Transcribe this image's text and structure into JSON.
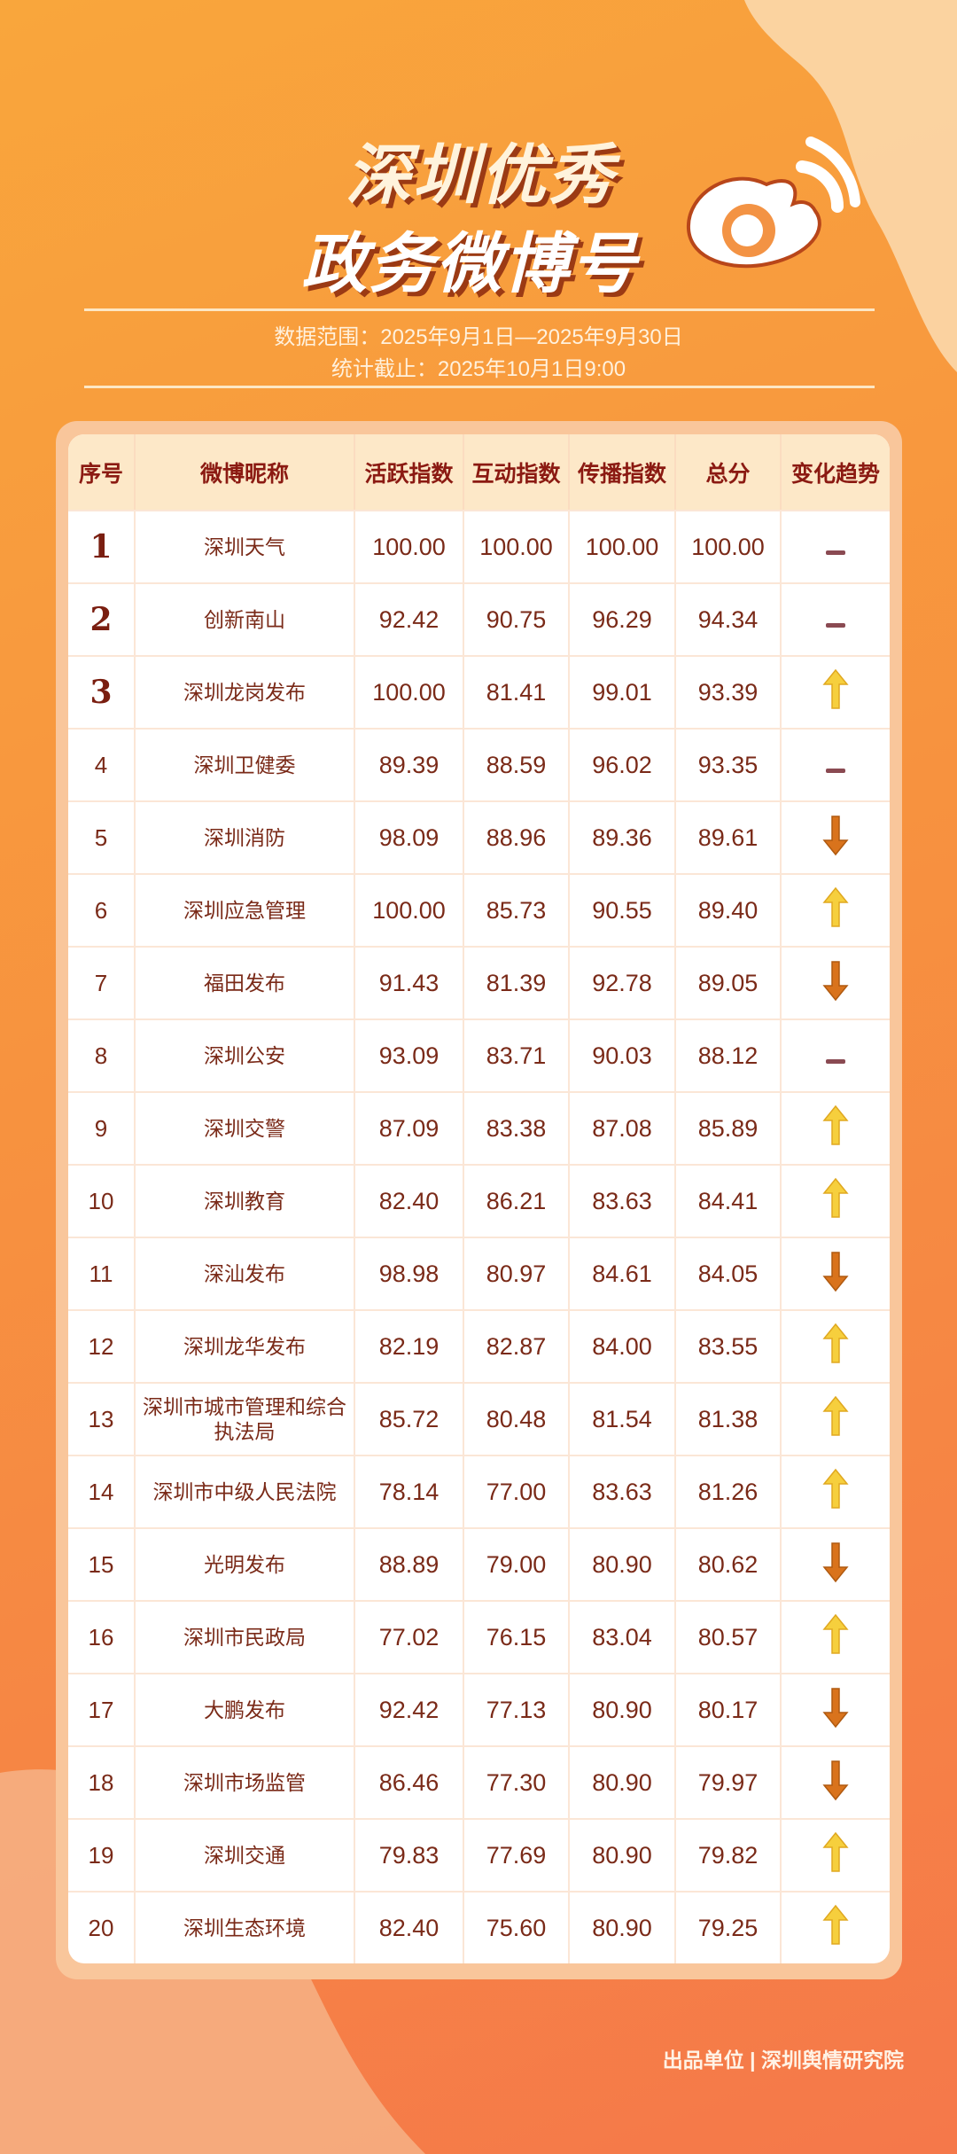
{
  "header": {
    "title_line1": "深圳优秀",
    "title_line2": "政务微博号",
    "data_range": "数据范围：2025年9月1日—2025年9月30日",
    "cutoff": "统计截止：2025年10月1日9:00"
  },
  "colors": {
    "up": "#f6cf3d",
    "down": "#d9731c",
    "flat": "#8a4a52",
    "header_bg": "#fde8c8",
    "text": "#7a2a18"
  },
  "table": {
    "columns": [
      "序号",
      "微博昵称",
      "活跃指数",
      "互动指数",
      "传播指数",
      "总分",
      "变化趋势"
    ],
    "rows": [
      {
        "rank": "1",
        "name": "深圳天气",
        "active": "100.00",
        "interact": "100.00",
        "spread": "100.00",
        "total": "100.00",
        "trend": "flat"
      },
      {
        "rank": "2",
        "name": "创新南山",
        "active": "92.42",
        "interact": "90.75",
        "spread": "96.29",
        "total": "94.34",
        "trend": "flat"
      },
      {
        "rank": "3",
        "name": "深圳龙岗发布",
        "active": "100.00",
        "interact": "81.41",
        "spread": "99.01",
        "total": "93.39",
        "trend": "up"
      },
      {
        "rank": "4",
        "name": "深圳卫健委",
        "active": "89.39",
        "interact": "88.59",
        "spread": "96.02",
        "total": "93.35",
        "trend": "flat"
      },
      {
        "rank": "5",
        "name": "深圳消防",
        "active": "98.09",
        "interact": "88.96",
        "spread": "89.36",
        "total": "89.61",
        "trend": "down"
      },
      {
        "rank": "6",
        "name": "深圳应急管理",
        "active": "100.00",
        "interact": "85.73",
        "spread": "90.55",
        "total": "89.40",
        "trend": "up"
      },
      {
        "rank": "7",
        "name": "福田发布",
        "active": "91.43",
        "interact": "81.39",
        "spread": "92.78",
        "total": "89.05",
        "trend": "down"
      },
      {
        "rank": "8",
        "name": "深圳公安",
        "active": "93.09",
        "interact": "83.71",
        "spread": "90.03",
        "total": "88.12",
        "trend": "flat"
      },
      {
        "rank": "9",
        "name": "深圳交警",
        "active": "87.09",
        "interact": "83.38",
        "spread": "87.08",
        "total": "85.89",
        "trend": "up"
      },
      {
        "rank": "10",
        "name": "深圳教育",
        "active": "82.40",
        "interact": "86.21",
        "spread": "83.63",
        "total": "84.41",
        "trend": "up"
      },
      {
        "rank": "11",
        "name": "深汕发布",
        "active": "98.98",
        "interact": "80.97",
        "spread": "84.61",
        "total": "84.05",
        "trend": "down"
      },
      {
        "rank": "12",
        "name": "深圳龙华发布",
        "active": "82.19",
        "interact": "82.87",
        "spread": "84.00",
        "total": "83.55",
        "trend": "up"
      },
      {
        "rank": "13",
        "name": "深圳市城市管理和综合执法局",
        "active": "85.72",
        "interact": "80.48",
        "spread": "81.54",
        "total": "81.38",
        "trend": "up"
      },
      {
        "rank": "14",
        "name": "深圳市中级人民法院",
        "active": "78.14",
        "interact": "77.00",
        "spread": "83.63",
        "total": "81.26",
        "trend": "up"
      },
      {
        "rank": "15",
        "name": "光明发布",
        "active": "88.89",
        "interact": "79.00",
        "spread": "80.90",
        "total": "80.62",
        "trend": "down"
      },
      {
        "rank": "16",
        "name": "深圳市民政局",
        "active": "77.02",
        "interact": "76.15",
        "spread": "83.04",
        "total": "80.57",
        "trend": "up"
      },
      {
        "rank": "17",
        "name": "大鹏发布",
        "active": "92.42",
        "interact": "77.13",
        "spread": "80.90",
        "total": "80.17",
        "trend": "down"
      },
      {
        "rank": "18",
        "name": "深圳市场监管",
        "active": "86.46",
        "interact": "77.30",
        "spread": "80.90",
        "total": "79.97",
        "trend": "down"
      },
      {
        "rank": "19",
        "name": "深圳交通",
        "active": "79.83",
        "interact": "77.69",
        "spread": "80.90",
        "total": "79.82",
        "trend": "up"
      },
      {
        "rank": "20",
        "name": "深圳生态环境",
        "active": "82.40",
        "interact": "75.60",
        "spread": "80.90",
        "total": "79.25",
        "trend": "up"
      }
    ]
  },
  "footer": {
    "text": "出品单位 | 深圳舆情研究院"
  },
  "logo": {
    "icon": "weibo-logo"
  }
}
